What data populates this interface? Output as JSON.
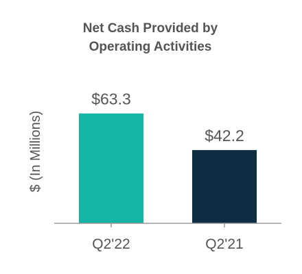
{
  "chart_data": {
    "type": "bar",
    "title_lines": [
      "Net Cash Provided by",
      "Operating Activities"
    ],
    "ylabel": "$ (In Millions)",
    "xlabel": "",
    "categories": [
      "Q2'22",
      "Q2'21"
    ],
    "values": [
      63.3,
      42.2
    ],
    "data_labels": [
      "$63.3",
      "$42.2"
    ],
    "bar_colors": [
      "#14b5a6",
      "#0f2d42"
    ],
    "ylim": [
      0,
      75
    ],
    "grid": false,
    "legend": "none"
  }
}
